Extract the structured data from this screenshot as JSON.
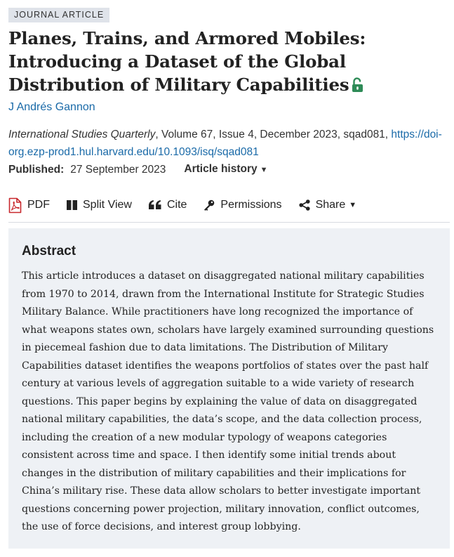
{
  "article_type": "JOURNAL ARTICLE",
  "title": "Planes, Trains, and Armored Mobiles: Introducing a Dataset of the Global Distribution of Military Capabilities",
  "author": "J Andrés Gannon",
  "citation": {
    "journal": "International Studies Quarterly",
    "details": ", Volume 67, Issue 4, December 2023, sqad081, ",
    "doi": "https://doi-org.ezp-prod1.hul.harvard.edu/10.1093/isq/sqad081"
  },
  "published": {
    "label": "Published:",
    "date": "27 September 2023",
    "history_label": "Article history"
  },
  "toolbar": {
    "pdf": "PDF",
    "split_view": "Split View",
    "cite": "Cite",
    "permissions": "Permissions",
    "share": "Share"
  },
  "abstract": {
    "heading": "Abstract",
    "text": "This article introduces a dataset on disaggregated national military capabilities from 1970 to 2014, drawn from the International Institute for Strategic Studies Military Balance. While practitioners have long recognized the importance of what weapons states own, scholars have largely examined surrounding questions in piecemeal fashion due to data limitations. The Distribution of Military Capabilities dataset identifies the weapons portfolios of states over the past half century at various levels of aggregation suitable to a wide variety of research questions. This paper begins by explaining the value of data on disaggregated national military capabilities, the data’s scope, and the data collection process, including the creation of a new modular typology of weapons categories consistent across time and space. I then identify some initial trends about changes in the distribution of military capabilities and their implications for China’s military rise. These data allow scholars to better investigate important questions concerning power projection, military innovation, conflict outcomes, the use of force decisions, and interest group lobbying."
  },
  "colors": {
    "link": "#1a6aa8",
    "open_access": "#2e8b57",
    "pdf_red": "#c8282d",
    "abstract_bg": "#eef1f5",
    "badge_bg": "#dfe3ea"
  },
  "icons": {
    "open_access": "unlocked-padlock-icon",
    "pdf": "pdf-file-icon",
    "split_view": "split-view-icon",
    "cite": "quote-icon",
    "permissions": "key-icon",
    "share": "share-icon"
  }
}
